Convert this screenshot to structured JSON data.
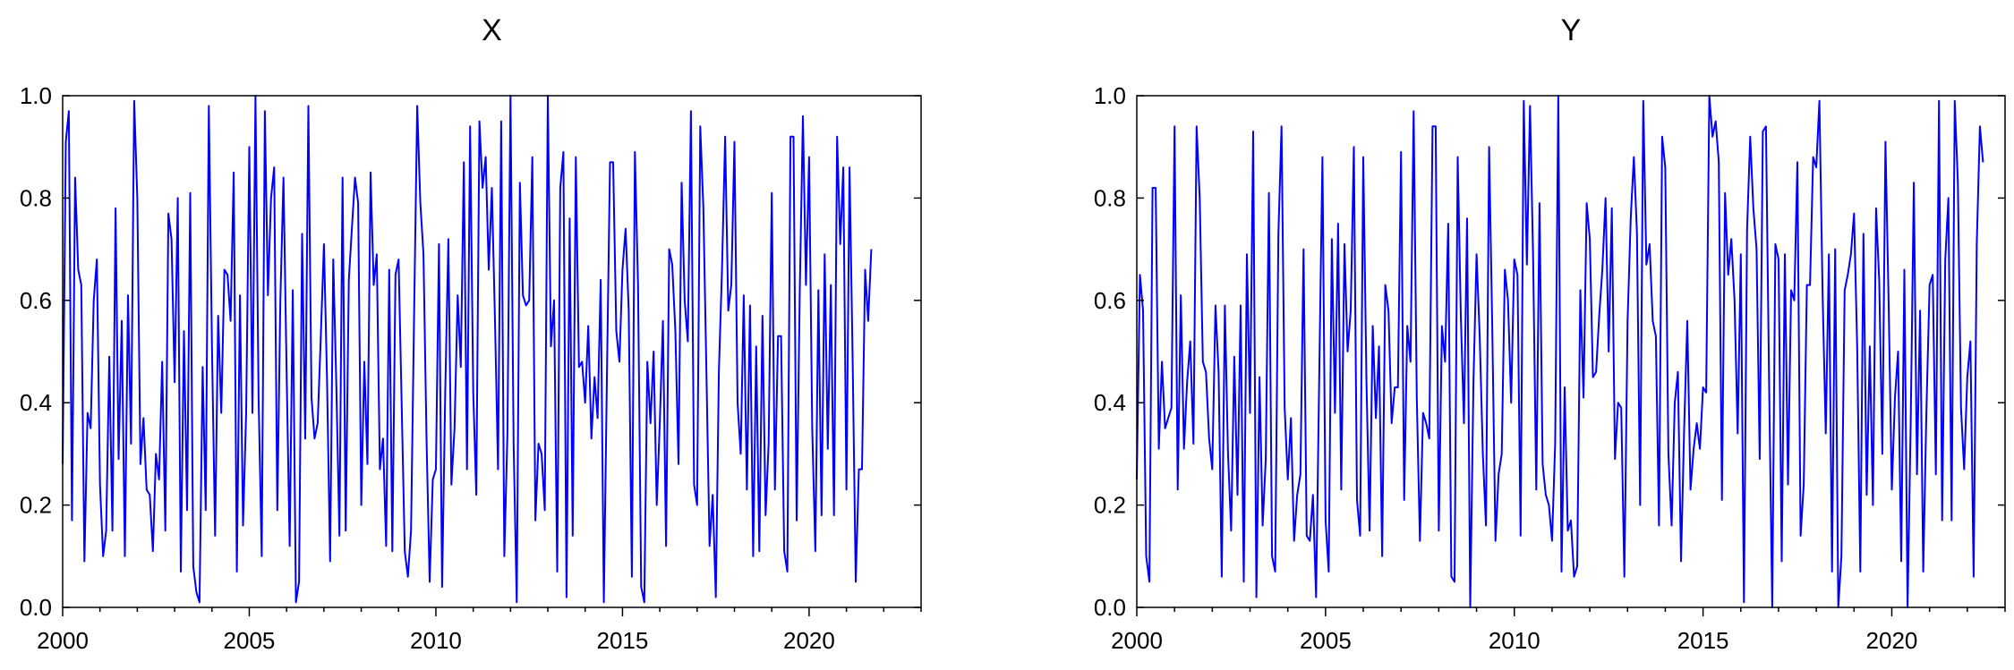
{
  "colors": {
    "series": "#0000ff",
    "axis": "#000000",
    "background": "#ffffff"
  },
  "chart_data": [
    {
      "type": "line",
      "title": "X",
      "xlabel": "",
      "ylabel": "",
      "xlim": [
        2000.0,
        2023.0
      ],
      "ylim": [
        0.0,
        1.0
      ],
      "x_ticks": [
        "2000",
        "2005",
        "2010",
        "2015",
        "2020"
      ],
      "y_ticks": [
        "0.0",
        "0.2",
        "0.4",
        "0.6",
        "0.8",
        "1.0"
      ],
      "grid": false,
      "series": [
        {
          "start": "2000-01",
          "frequency": "monthly",
          "values": [
            0.28,
            0.91,
            0.97,
            0.17,
            0.84,
            0.66,
            0.63,
            0.09,
            0.38,
            0.35,
            0.6,
            0.68,
            0.24,
            0.1,
            0.15,
            0.49,
            0.15,
            0.78,
            0.29,
            0.56,
            0.1,
            0.61,
            0.32,
            0.99,
            0.8,
            0.28,
            0.37,
            0.23,
            0.22,
            0.11,
            0.3,
            0.25,
            0.48,
            0.15,
            0.77,
            0.72,
            0.44,
            0.8,
            0.07,
            0.54,
            0.19,
            0.81,
            0.08,
            0.03,
            0.01,
            0.47,
            0.19,
            0.98,
            0.51,
            0.14,
            0.57,
            0.38,
            0.66,
            0.65,
            0.56,
            0.85,
            0.07,
            0.61,
            0.16,
            0.38,
            0.9,
            0.38,
            1.0,
            0.41,
            0.1,
            0.97,
            0.61,
            0.8,
            0.86,
            0.19,
            0.6,
            0.84,
            0.46,
            0.12,
            0.62,
            0.01,
            0.05,
            0.73,
            0.33,
            0.98,
            0.41,
            0.33,
            0.36,
            0.53,
            0.71,
            0.45,
            0.09,
            0.68,
            0.43,
            0.14,
            0.84,
            0.15,
            0.64,
            0.74,
            0.84,
            0.79,
            0.2,
            0.48,
            0.28,
            0.85,
            0.63,
            0.69,
            0.27,
            0.33,
            0.12,
            0.66,
            0.11,
            0.65,
            0.68,
            0.4,
            0.11,
            0.06,
            0.15,
            0.57,
            0.98,
            0.79,
            0.69,
            0.33,
            0.05,
            0.25,
            0.27,
            0.71,
            0.04,
            0.42,
            0.72,
            0.24,
            0.35,
            0.61,
            0.47,
            0.87,
            0.27,
            0.94,
            0.42,
            0.22,
            0.95,
            0.82,
            0.88,
            0.66,
            0.82,
            0.56,
            0.27,
            0.95,
            0.1,
            0.34,
            1.0,
            0.32,
            0.01,
            0.83,
            0.61,
            0.59,
            0.6,
            0.88,
            0.17,
            0.32,
            0.3,
            0.19,
            1.0,
            0.51,
            0.6,
            0.07,
            0.82,
            0.89,
            0.02,
            0.76,
            0.14,
            0.88,
            0.47,
            0.48,
            0.4,
            0.55,
            0.33,
            0.45,
            0.37,
            0.64,
            0.01,
            0.46,
            0.87,
            0.87,
            0.54,
            0.48,
            0.66,
            0.74,
            0.58,
            0.06,
            0.89,
            0.63,
            0.04,
            0.01,
            0.48,
            0.36,
            0.5,
            0.2,
            0.36,
            0.56,
            0.12,
            0.7,
            0.67,
            0.54,
            0.28,
            0.83,
            0.6,
            0.52,
            0.97,
            0.24,
            0.2,
            0.94,
            0.78,
            0.45,
            0.12,
            0.22,
            0.02,
            0.46,
            0.66,
            0.92,
            0.58,
            0.63,
            0.91,
            0.4,
            0.3,
            0.61,
            0.23,
            0.59,
            0.1,
            0.51,
            0.11,
            0.57,
            0.18,
            0.32,
            0.81,
            0.23,
            0.53,
            0.53,
            0.11,
            0.07,
            0.92,
            0.92,
            0.17,
            0.62,
            0.96,
            0.63,
            0.88,
            0.35,
            0.11,
            0.62,
            0.18,
            0.69,
            0.31,
            0.63,
            0.18,
            0.92,
            0.71,
            0.86,
            0.23,
            0.86,
            0.48,
            0.05,
            0.27,
            0.27,
            0.66,
            0.56,
            0.7
          ]
        }
      ]
    },
    {
      "type": "line",
      "title": "Y",
      "xlabel": "",
      "ylabel": "",
      "xlim": [
        2000.0,
        2023.0
      ],
      "ylim": [
        0.0,
        1.0
      ],
      "x_ticks": [
        "2000",
        "2005",
        "2010",
        "2015",
        "2020"
      ],
      "y_ticks": [
        "0.0",
        "0.2",
        "0.4",
        "0.6",
        "0.8",
        "1.0"
      ],
      "grid": false,
      "series": [
        {
          "start": "2000-01",
          "frequency": "monthly",
          "values": [
            0.25,
            0.65,
            0.58,
            0.1,
            0.05,
            0.82,
            0.82,
            0.31,
            0.48,
            0.35,
            0.37,
            0.39,
            0.94,
            0.23,
            0.61,
            0.31,
            0.44,
            0.52,
            0.32,
            0.94,
            0.8,
            0.48,
            0.46,
            0.33,
            0.27,
            0.59,
            0.46,
            0.06,
            0.59,
            0.3,
            0.15,
            0.49,
            0.22,
            0.59,
            0.05,
            0.69,
            0.38,
            0.93,
            0.02,
            0.45,
            0.16,
            0.29,
            0.81,
            0.1,
            0.07,
            0.73,
            0.94,
            0.39,
            0.25,
            0.37,
            0.13,
            0.22,
            0.26,
            0.7,
            0.14,
            0.13,
            0.22,
            0.02,
            0.45,
            0.88,
            0.17,
            0.07,
            0.72,
            0.38,
            0.75,
            0.23,
            0.71,
            0.5,
            0.58,
            0.9,
            0.21,
            0.14,
            0.88,
            0.44,
            0.15,
            0.55,
            0.37,
            0.51,
            0.1,
            0.63,
            0.58,
            0.36,
            0.43,
            0.43,
            0.89,
            0.21,
            0.55,
            0.48,
            0.97,
            0.41,
            0.13,
            0.38,
            0.36,
            0.33,
            0.94,
            0.94,
            0.15,
            0.55,
            0.48,
            0.75,
            0.06,
            0.05,
            0.88,
            0.57,
            0.36,
            0.76,
            0.0,
            0.44,
            0.69,
            0.53,
            0.3,
            0.16,
            0.9,
            0.55,
            0.13,
            0.26,
            0.3,
            0.66,
            0.6,
            0.4,
            0.68,
            0.65,
            0.14,
            0.99,
            0.67,
            0.98,
            0.68,
            0.23,
            0.79,
            0.28,
            0.22,
            0.2,
            0.13,
            0.32,
            1.0,
            0.07,
            0.43,
            0.15,
            0.17,
            0.06,
            0.08,
            0.62,
            0.41,
            0.79,
            0.72,
            0.45,
            0.46,
            0.57,
            0.66,
            0.8,
            0.5,
            0.78,
            0.29,
            0.4,
            0.39,
            0.06,
            0.56,
            0.76,
            0.88,
            0.73,
            0.2,
            0.99,
            0.67,
            0.71,
            0.56,
            0.53,
            0.16,
            0.92,
            0.86,
            0.3,
            0.16,
            0.4,
            0.46,
            0.09,
            0.35,
            0.56,
            0.23,
            0.31,
            0.36,
            0.31,
            0.43,
            0.42,
            1.0,
            0.92,
            0.95,
            0.87,
            0.21,
            0.81,
            0.65,
            0.72,
            0.6,
            0.34,
            0.69,
            0.01,
            0.74,
            0.92,
            0.78,
            0.7,
            0.29,
            0.93,
            0.94,
            0.44,
            0.0,
            0.71,
            0.68,
            0.09,
            0.69,
            0.24,
            0.62,
            0.6,
            0.87,
            0.14,
            0.24,
            0.63,
            0.63,
            0.88,
            0.86,
            0.99,
            0.61,
            0.34,
            0.69,
            0.07,
            0.7,
            0.0,
            0.1,
            0.62,
            0.65,
            0.69,
            0.77,
            0.51,
            0.07,
            0.73,
            0.22,
            0.51,
            0.2,
            0.78,
            0.64,
            0.3,
            0.91,
            0.59,
            0.23,
            0.41,
            0.5,
            0.09,
            0.66,
            0.0,
            0.36,
            0.83,
            0.26,
            0.58,
            0.07,
            0.38,
            0.63,
            0.65,
            0.26,
            0.99,
            0.17,
            0.68,
            0.8,
            0.17,
            0.99,
            0.83,
            0.39,
            0.27,
            0.45,
            0.52,
            0.06,
            0.71,
            0.94,
            0.87
          ]
        }
      ]
    }
  ]
}
